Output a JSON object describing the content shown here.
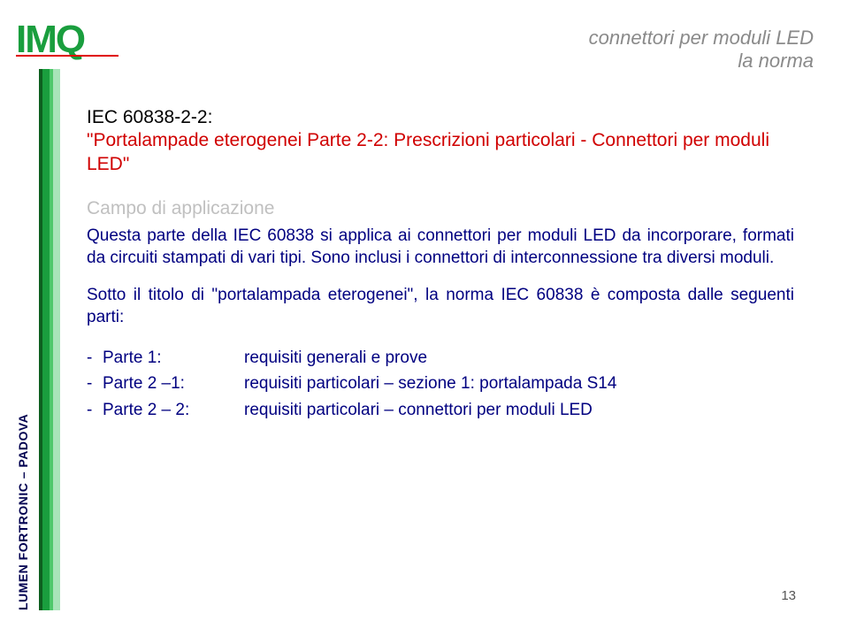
{
  "logo": {
    "text": "IMQ"
  },
  "header": {
    "line1": "connettori per moduli LED",
    "line2": "la norma"
  },
  "sidebar": {
    "text": "LUMEN FORTRONIC – PADOVA"
  },
  "content": {
    "standard_code": "IEC 60838-2-2:",
    "title_red": "\"Portalampade eterogenei Parte 2-2: Prescrizioni particolari - Connettori per moduli LED\"",
    "scope_heading": "Campo di applicazione",
    "scope_body": "Questa parte della IEC 60838 si applica ai connettori per moduli LED da incorporare, formati da circuiti stampati di vari tipi. Sono inclusi i connettori di interconnessione tra diversi moduli.",
    "parts_intro": "Sotto il titolo di \"portalampada eterogenei\", la norma IEC 60838 è composta dalle seguenti parti:",
    "parts": [
      {
        "label": "Parte 1:",
        "desc": "requisiti generali e prove"
      },
      {
        "label": "Parte 2 –1:",
        "desc": "requisiti particolari – sezione 1: portalampada S14"
      },
      {
        "label": "Parte 2 – 2:",
        "desc": "requisiti particolari – connettori per moduli LED"
      }
    ]
  },
  "page_number": "13",
  "colors": {
    "logo_green": "#1a9e3e",
    "logo_bar_red": "#e00000",
    "header_grey": "#8a8a8a",
    "title_red": "#d00000",
    "body_blue": "#000080",
    "heading_grey": "#c0c0c0",
    "sidebar_navy": "#000050",
    "stripe_dark": "#0d5f1f",
    "stripe_mid": "#1a9e3e",
    "stripe_light": "#4fc86b",
    "stripe_lighter": "#a8e4b8"
  }
}
